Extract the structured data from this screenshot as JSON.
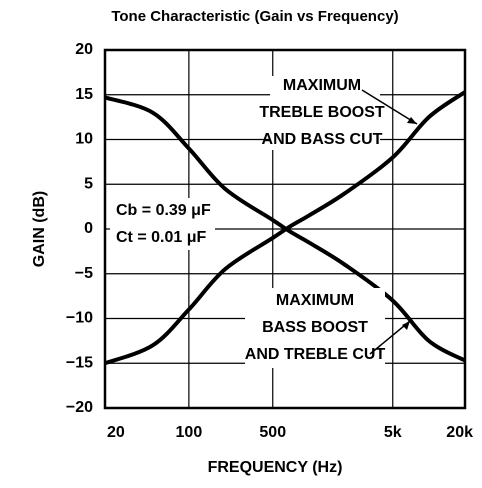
{
  "chart_data": {
    "type": "line",
    "title": "Tone Characteristic (Gain vs Frequency)",
    "xlabel": "FREQUENCY (Hz)",
    "ylabel": "GAIN (dB)",
    "xscale": "log",
    "grid": true,
    "x": [
      20,
      50,
      100,
      200,
      500,
      700,
      1000,
      2000,
      5000,
      10000,
      20000
    ],
    "series": [
      {
        "name": "MAXIMUM TREBLE BOOST AND BASS CUT",
        "color": "#000000",
        "values": [
          -15,
          -13,
          -9,
          -4.5,
          -1,
          0.3,
          1.5,
          4,
          8,
          12.5,
          15.3
        ]
      },
      {
        "name": "MAXIMUM BASS BOOST AND TREBLE CUT",
        "color": "#000000",
        "values": [
          14.7,
          13,
          9,
          4.5,
          1,
          -0.3,
          -1.5,
          -4,
          -8,
          -12.5,
          -14.7
        ]
      }
    ],
    "annotations": [
      {
        "lines": [
          "MAXIMUM",
          "TREBLE BOOST",
          "AND BASS CUT"
        ]
      },
      {
        "lines": [
          "MAXIMUM",
          "BASS BOOST",
          "AND TREBLE CUT"
        ]
      },
      {
        "lines": [
          "Cb = 0.39 μF",
          "Ct = 0.01 μF"
        ]
      }
    ],
    "xlim": [
      20,
      20000
    ],
    "xticks": [
      20,
      100,
      500,
      {
        "value": 5000,
        "label": "5k"
      },
      {
        "value": 20000,
        "label": "20k"
      }
    ],
    "ylim": [
      -20,
      20
    ],
    "yticks": [
      {
        "value": -20,
        "label": "−20"
      },
      {
        "value": -15,
        "label": "−15"
      },
      {
        "value": -10,
        "label": "−10"
      },
      {
        "value": -5,
        "label": "−5"
      },
      0,
      5,
      10,
      15,
      20
    ]
  }
}
